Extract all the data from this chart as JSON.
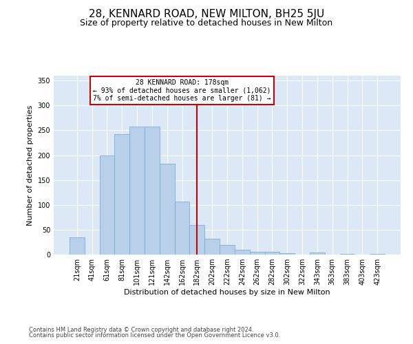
{
  "title": "28, KENNARD ROAD, NEW MILTON, BH25 5JU",
  "subtitle": "Size of property relative to detached houses in New Milton",
  "xlabel": "Distribution of detached houses by size in New Milton",
  "ylabel": "Number of detached properties",
  "footnote1": "Contains HM Land Registry data © Crown copyright and database right 2024.",
  "footnote2": "Contains public sector information licensed under the Open Government Licence v3.0.",
  "categories": [
    "21sqm",
    "41sqm",
    "61sqm",
    "81sqm",
    "101sqm",
    "121sqm",
    "142sqm",
    "162sqm",
    "182sqm",
    "202sqm",
    "222sqm",
    "242sqm",
    "262sqm",
    "282sqm",
    "302sqm",
    "322sqm",
    "343sqm",
    "363sqm",
    "383sqm",
    "403sqm",
    "423sqm"
  ],
  "values": [
    35,
    0,
    199,
    243,
    257,
    257,
    183,
    107,
    59,
    32,
    19,
    10,
    6,
    6,
    3,
    0,
    4,
    0,
    1,
    0,
    2
  ],
  "bar_color": "#b8d0ea",
  "bar_edge_color": "#7aafd4",
  "vline_x": 8.0,
  "vline_color": "#cc0000",
  "box_text_line1": "28 KENNARD ROAD: 178sqm",
  "box_text_line2": "← 93% of detached houses are smaller (1,062)",
  "box_text_line3": "7% of semi-detached houses are larger (81) →",
  "box_facecolor": "#ffffff",
  "box_edgecolor": "#cc0000",
  "ylim_max": 360,
  "yticks": [
    0,
    50,
    100,
    150,
    200,
    250,
    300,
    350
  ],
  "plot_bg": "#dce8f5",
  "title_fontsize": 11,
  "subtitle_fontsize": 9,
  "ylabel_fontsize": 8,
  "xlabel_fontsize": 8,
  "tick_fontsize": 7,
  "footnote_fontsize": 6
}
